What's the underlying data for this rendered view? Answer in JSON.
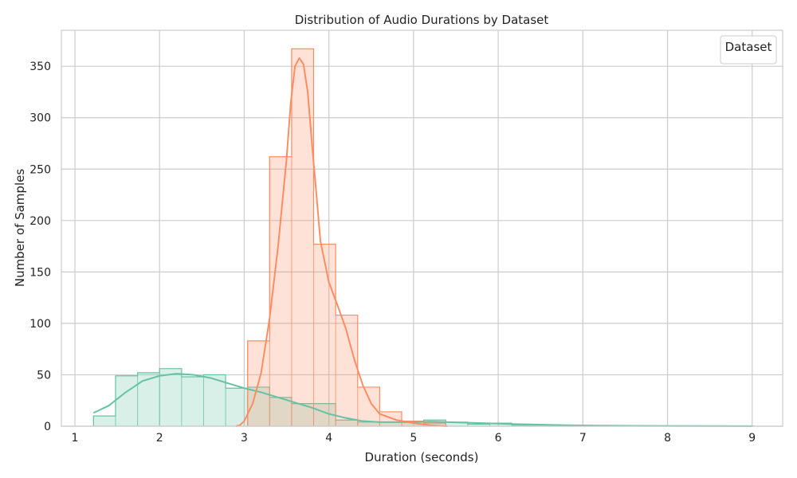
{
  "chart_data": {
    "type": "histogram",
    "title": "Distribution of Audio Durations by Dataset",
    "xlabel": "Duration (seconds)",
    "ylabel": "Number of Samples",
    "xlim": [
      0.84,
      9.36
    ],
    "ylim": [
      0,
      385
    ],
    "xticks": [
      1,
      2,
      3,
      4,
      5,
      6,
      7,
      8,
      9
    ],
    "yticks": [
      0,
      50,
      100,
      150,
      200,
      250,
      300,
      350
    ],
    "grid": true,
    "legend": {
      "title": "Dataset",
      "placement": "top-right",
      "entries": []
    },
    "series": [
      {
        "color": "#66c2a5",
        "bins": [
          {
            "x0": 1.22,
            "x1": 1.48,
            "count": 10
          },
          {
            "x0": 1.48,
            "x1": 1.74,
            "count": 49
          },
          {
            "x0": 1.74,
            "x1": 2.0,
            "count": 52
          },
          {
            "x0": 2.0,
            "x1": 2.26,
            "count": 56
          },
          {
            "x0": 2.26,
            "x1": 2.52,
            "count": 48
          },
          {
            "x0": 2.52,
            "x1": 2.78,
            "count": 50
          },
          {
            "x0": 2.78,
            "x1": 3.04,
            "count": 37
          },
          {
            "x0": 3.04,
            "x1": 3.3,
            "count": 38
          },
          {
            "x0": 3.3,
            "x1": 3.56,
            "count": 28
          },
          {
            "x0": 3.56,
            "x1": 3.82,
            "count": 22
          },
          {
            "x0": 3.82,
            "x1": 4.08,
            "count": 22
          },
          {
            "x0": 4.08,
            "x1": 4.34,
            "count": 6
          },
          {
            "x0": 4.34,
            "x1": 4.6,
            "count": 4
          },
          {
            "x0": 4.6,
            "x1": 4.86,
            "count": 4
          },
          {
            "x0": 4.86,
            "x1": 5.12,
            "count": 5
          },
          {
            "x0": 5.12,
            "x1": 5.38,
            "count": 6
          },
          {
            "x0": 5.38,
            "x1": 5.64,
            "count": 4
          },
          {
            "x0": 5.64,
            "x1": 5.9,
            "count": 2
          },
          {
            "x0": 5.9,
            "x1": 6.16,
            "count": 3
          },
          {
            "x0": 6.16,
            "x1": 6.42,
            "count": 1
          },
          {
            "x0": 6.42,
            "x1": 6.68,
            "count": 1
          },
          {
            "x0": 6.68,
            "x1": 6.94,
            "count": 1
          },
          {
            "x0": 6.94,
            "x1": 7.2,
            "count": 0.5
          },
          {
            "x0": 7.2,
            "x1": 7.46,
            "count": 0.3
          },
          {
            "x0": 7.46,
            "x1": 7.72,
            "count": 0.3
          },
          {
            "x0": 7.72,
            "x1": 7.98,
            "count": 0.3
          },
          {
            "x0": 7.98,
            "x1": 8.24,
            "count": 0.2
          },
          {
            "x0": 8.24,
            "x1": 8.5,
            "count": 0.2
          },
          {
            "x0": 8.5,
            "x1": 8.76,
            "count": 0.2
          },
          {
            "x0": 8.76,
            "x1": 9.02,
            "count": 0.2
          }
        ],
        "kde": [
          [
            1.22,
            13
          ],
          [
            1.4,
            20
          ],
          [
            1.6,
            33
          ],
          [
            1.8,
            44
          ],
          [
            2.0,
            49
          ],
          [
            2.2,
            51
          ],
          [
            2.4,
            50
          ],
          [
            2.6,
            47
          ],
          [
            2.8,
            42
          ],
          [
            3.0,
            37
          ],
          [
            3.2,
            33
          ],
          [
            3.4,
            28
          ],
          [
            3.6,
            23
          ],
          [
            3.8,
            18
          ],
          [
            4.0,
            12
          ],
          [
            4.2,
            8
          ],
          [
            4.4,
            5
          ],
          [
            4.6,
            4
          ],
          [
            4.8,
            4
          ],
          [
            5.0,
            4
          ],
          [
            5.2,
            4.5
          ],
          [
            5.4,
            4
          ],
          [
            5.6,
            3.5
          ],
          [
            5.8,
            3
          ],
          [
            6.0,
            2.5
          ],
          [
            6.2,
            2
          ],
          [
            6.5,
            1.5
          ],
          [
            6.8,
            1
          ],
          [
            7.2,
            0.6
          ],
          [
            7.6,
            0.4
          ],
          [
            8.0,
            0.3
          ],
          [
            8.5,
            0.2
          ],
          [
            9.0,
            0.1
          ]
        ]
      },
      {
        "color": "#fc8d62",
        "bins": [
          {
            "x0": 3.04,
            "x1": 3.3,
            "count": 83
          },
          {
            "x0": 3.3,
            "x1": 3.56,
            "count": 262
          },
          {
            "x0": 3.56,
            "x1": 3.82,
            "count": 367
          },
          {
            "x0": 3.82,
            "x1": 4.08,
            "count": 177
          },
          {
            "x0": 4.08,
            "x1": 4.34,
            "count": 108
          },
          {
            "x0": 4.34,
            "x1": 4.6,
            "count": 38
          },
          {
            "x0": 4.6,
            "x1": 4.86,
            "count": 14
          },
          {
            "x0": 4.86,
            "x1": 5.12,
            "count": 5
          },
          {
            "x0": 5.12,
            "x1": 5.38,
            "count": 3
          }
        ],
        "kde": [
          [
            2.9,
            0
          ],
          [
            2.95,
            1
          ],
          [
            3.0,
            5
          ],
          [
            3.1,
            22
          ],
          [
            3.2,
            52
          ],
          [
            3.3,
            105
          ],
          [
            3.4,
            175
          ],
          [
            3.5,
            260
          ],
          [
            3.55,
            315
          ],
          [
            3.6,
            350
          ],
          [
            3.65,
            358
          ],
          [
            3.7,
            352
          ],
          [
            3.75,
            325
          ],
          [
            3.8,
            275
          ],
          [
            3.85,
            228
          ],
          [
            3.9,
            180
          ],
          [
            4.0,
            140
          ],
          [
            4.1,
            118
          ],
          [
            4.2,
            95
          ],
          [
            4.3,
            65
          ],
          [
            4.4,
            40
          ],
          [
            4.5,
            22
          ],
          [
            4.6,
            12
          ],
          [
            4.8,
            6
          ],
          [
            5.0,
            3
          ],
          [
            5.2,
            1
          ],
          [
            5.4,
            0
          ]
        ]
      }
    ]
  }
}
